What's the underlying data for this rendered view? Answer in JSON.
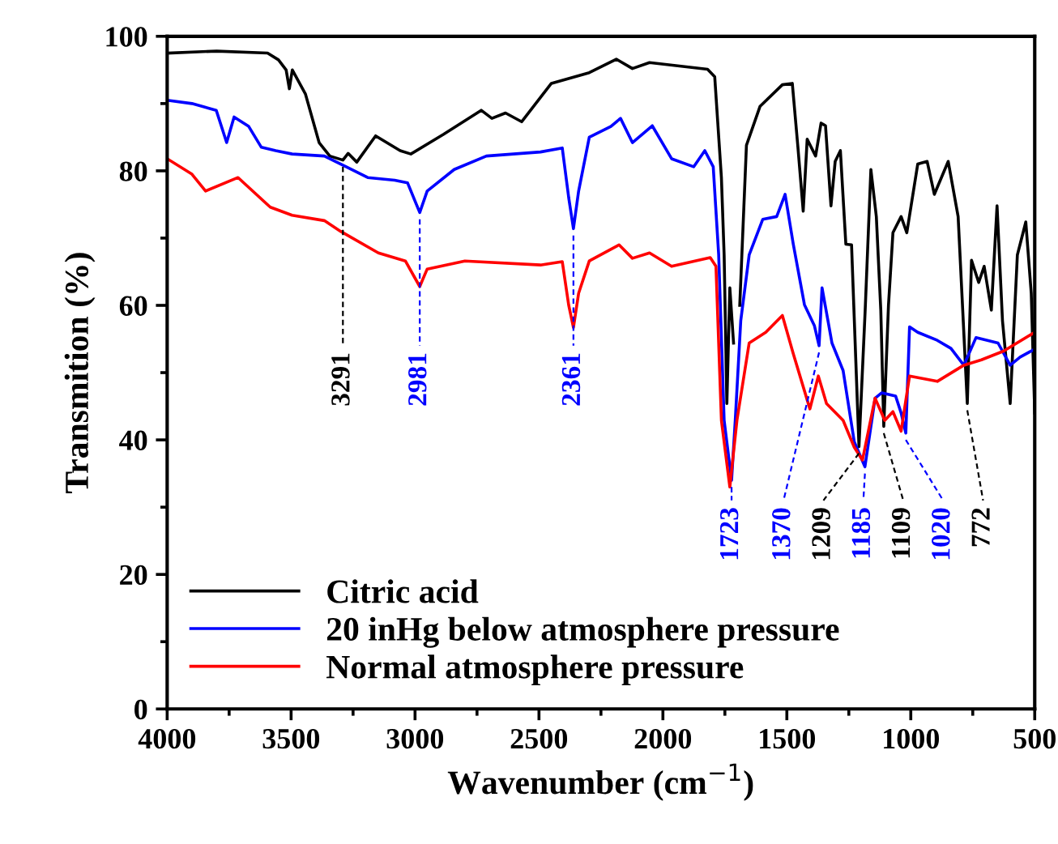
{
  "chart_data": {
    "type": "line",
    "xlabel": "Wavenumber (cm$^{−1}$)",
    "ylabel": "Transmition (%)",
    "xlim": [
      4000,
      500
    ],
    "ylim": [
      0,
      100
    ],
    "xticks": [
      4000,
      3500,
      3000,
      2500,
      2000,
      1500,
      1000,
      500
    ],
    "yticks": [
      0,
      20,
      40,
      60,
      80,
      100
    ],
    "grid": false,
    "legend": "bottom left",
    "line_style": "solid",
    "marker": "none",
    "series": [
      {
        "name": "Citric acid",
        "color": "#000000",
        "x": [
          4000,
          3800,
          3595,
          3551,
          3520,
          3507,
          3495,
          3442,
          3387,
          3344,
          3291,
          3270,
          3235,
          3159,
          3060,
          3017,
          2886,
          2733,
          2690,
          2635,
          2570,
          2450,
          2297,
          2188,
          2123,
          2054,
          1820,
          1791,
          1764,
          1753,
          1742,
          1730,
          1715,
          1705,
          1690,
          1663,
          1608,
          1518,
          1478,
          1456,
          1434,
          1418,
          1384,
          1362,
          1344,
          1322,
          1305,
          1284,
          1262,
          1239,
          1209,
          1184,
          1161,
          1139,
          1121,
          1109,
          1090,
          1072,
          1039,
          1016,
          972,
          934,
          905,
          849,
          809,
          772,
          755,
          726,
          704,
          675,
          652,
          630,
          599,
          570,
          536,
          514,
          500
        ],
        "values": [
          97.5,
          97.8,
          97.5,
          96.5,
          95,
          92.2,
          95,
          91.4,
          84.2,
          82.2,
          81.6,
          82.6,
          81.3,
          85.2,
          83,
          82.5,
          85.4,
          89,
          87.8,
          88.6,
          87.3,
          93,
          94.6,
          96.6,
          95.2,
          96.1,
          95.1,
          94,
          79,
          67.5,
          45.4,
          62.6,
          54.4,
          null,
          60,
          83.8,
          89.6,
          92.8,
          93,
          83.8,
          74,
          84.7,
          82.2,
          87.1,
          86.7,
          74.8,
          81.4,
          83,
          69.1,
          69,
          39,
          59.3,
          80.2,
          73.2,
          59.3,
          42,
          60,
          70.8,
          73.2,
          70.8,
          81,
          81.4,
          76.5,
          81.4,
          73.2,
          45.4,
          66.7,
          63.4,
          65.8,
          59.3,
          74.8,
          57.7,
          45.4,
          67.5,
          72.4,
          61.8,
          44
        ]
      },
      {
        "name": "20 inHg below atmosphere pressure",
        "color": "#0000ff",
        "x": [
          4000,
          3900,
          3802,
          3760,
          3730,
          3671,
          3620,
          3562,
          3496,
          3366,
          3278,
          3191,
          3082,
          3030,
          2981,
          2951,
          2842,
          2712,
          2494,
          2406,
          2380,
          2361,
          2340,
          2297,
          2210,
          2171,
          2123,
          2043,
          1965,
          1876,
          1831,
          1797,
          1775,
          1753,
          1723,
          1708,
          1686,
          1652,
          1597,
          1541,
          1507,
          1474,
          1429,
          1389,
          1370,
          1358,
          1318,
          1273,
          1228,
          1185,
          1144,
          1117,
          1061,
          1039,
          1020,
          1005,
          972,
          893,
          838,
          786,
          737,
          648,
          599,
          559,
          500
        ],
        "values": [
          90.5,
          90,
          89,
          84.2,
          88,
          86.6,
          83.5,
          83,
          82.5,
          82.2,
          80.6,
          79,
          78.6,
          78.2,
          73.8,
          77,
          80.2,
          82.2,
          82.8,
          83.4,
          76,
          71.4,
          77,
          85,
          86.6,
          87.8,
          84.2,
          86.7,
          81.8,
          80.6,
          83,
          80.6,
          67.5,
          42.9,
          34,
          43,
          57.7,
          67.5,
          72.8,
          73.2,
          76.5,
          69.1,
          60.1,
          57,
          54,
          62.6,
          54.4,
          50.3,
          39.7,
          36,
          46.2,
          47,
          46.5,
          44,
          41,
          56.8,
          56,
          54.8,
          53.6,
          51.1,
          55.2,
          54.4,
          51.1,
          52.3,
          53.5
        ]
      },
      {
        "name": "Normal atmosphere pressure",
        "color": "#ff0000",
        "x": [
          4000,
          3900,
          3845,
          3714,
          3584,
          3496,
          3366,
          3300,
          3148,
          3039,
          2981,
          2951,
          2799,
          2494,
          2406,
          2380,
          2361,
          2340,
          2297,
          2177,
          2123,
          2054,
          1965,
          1809,
          1786,
          1764,
          1730,
          1701,
          1652,
          1585,
          1518,
          1474,
          1407,
          1373,
          1340,
          1273,
          1228,
          1195,
          1144,
          1105,
          1072,
          1039,
          1005,
          893,
          786,
          715,
          626,
          500
        ],
        "values": [
          81.8,
          79.5,
          77,
          79,
          74.6,
          73.4,
          72.6,
          71,
          67.8,
          66.6,
          62.8,
          65.4,
          66.6,
          66,
          66.5,
          60,
          56.7,
          61.8,
          66.6,
          69,
          67,
          67.8,
          65.8,
          67.1,
          65.8,
          42.9,
          33,
          43,
          54.4,
          56,
          58.5,
          52.8,
          44.6,
          49.5,
          45.4,
          42.9,
          38.9,
          37,
          46.2,
          42.9,
          44.2,
          41.3,
          49.5,
          48.7,
          51.1,
          51.9,
          53.2,
          56
        ]
      }
    ],
    "annotations": [
      {
        "text": "3291",
        "x": 3291,
        "y": 81.6
      },
      {
        "text": "2981",
        "x": 2981,
        "y": 73.8
      },
      {
        "text": "2361",
        "x": 2361,
        "y": 71.4
      },
      {
        "text": "1723",
        "x": 1723,
        "y": 34
      },
      {
        "text": "1370",
        "x": 1370,
        "y": 54
      },
      {
        "text": "1209",
        "x": 1209,
        "y": 39
      },
      {
        "text": "1185",
        "x": 1185,
        "y": 36
      },
      {
        "text": "1109",
        "x": 1109,
        "y": 42
      },
      {
        "text": "1020",
        "x": 1020,
        "y": 41
      },
      {
        "text": "772",
        "x": 772,
        "y": 45.4
      }
    ]
  }
}
